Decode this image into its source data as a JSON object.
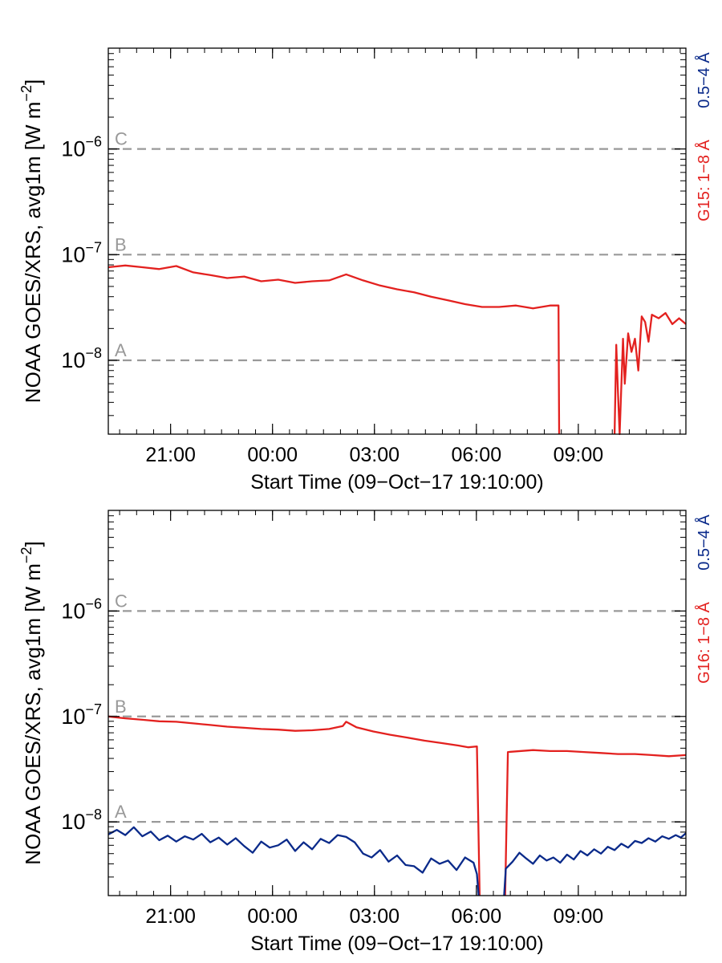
{
  "colors": {
    "long_channel": "#e3211f",
    "short_channel": "#0a2a8a",
    "threshold": "#999999",
    "axis": "#000000"
  },
  "chart_data": [
    {
      "type": "line",
      "ylabel_main": "NOAA GOES/XRS, avg1m [W m",
      "ylabel_sup": "−2",
      "ylabel_end": "]",
      "xlabel": "Start Time (09−Oct−17 19:10:00)",
      "y_scale": "log",
      "ylim": [
        2e-09,
        9e-06
      ],
      "xlim_hours_from_start": [
        0,
        17
      ],
      "xticks": [
        {
          "hour": 1.8333,
          "label": "21:00"
        },
        {
          "hour": 4.8333,
          "label": "00:00"
        },
        {
          "hour": 7.8333,
          "label": "03:00"
        },
        {
          "hour": 10.8333,
          "label": "06:00"
        },
        {
          "hour": 13.8333,
          "label": "09:00"
        }
      ],
      "yticks": [
        {
          "value": 1e-06,
          "base": "10",
          "exp": "−6"
        },
        {
          "value": 1e-07,
          "base": "10",
          "exp": "−7"
        },
        {
          "value": 1e-08,
          "base": "10",
          "exp": "−8"
        }
      ],
      "thresholds": [
        {
          "value": 1e-06,
          "label": "C"
        },
        {
          "value": 1e-07,
          "label": "B"
        },
        {
          "value": 1e-08,
          "label": "A"
        }
      ],
      "right_legend": [
        {
          "text": "0.5−4 Å",
          "channel": "short"
        },
        {
          "text": "G15: 1−8 Å",
          "channel": "long"
        }
      ],
      "series": [
        {
          "channel": "long",
          "points": [
            [
              0,
              7.6e-08
            ],
            [
              0.5,
              7.9e-08
            ],
            [
              1.0,
              7.6e-08
            ],
            [
              1.5,
              7.3e-08
            ],
            [
              2.0,
              7.8e-08
            ],
            [
              2.5,
              6.8e-08
            ],
            [
              3.0,
              6.4e-08
            ],
            [
              3.5,
              6e-08
            ],
            [
              4.0,
              6.2e-08
            ],
            [
              4.5,
              5.6e-08
            ],
            [
              5.0,
              5.8e-08
            ],
            [
              5.5,
              5.4e-08
            ],
            [
              6.0,
              5.6e-08
            ],
            [
              6.5,
              5.7e-08
            ],
            [
              7.0,
              6.5e-08
            ],
            [
              7.5,
              5.7e-08
            ],
            [
              8.0,
              5.1e-08
            ],
            [
              8.5,
              4.7e-08
            ],
            [
              9.0,
              4.4e-08
            ],
            [
              9.5,
              4e-08
            ],
            [
              10.0,
              3.7e-08
            ],
            [
              10.5,
              3.4e-08
            ],
            [
              11.0,
              3.2e-08
            ],
            [
              11.5,
              3.2e-08
            ],
            [
              12.0,
              3.3e-08
            ],
            [
              12.5,
              3.1e-08
            ],
            [
              13.0,
              3.3e-08
            ],
            [
              13.25,
              3.3e-08
            ],
            [
              13.27,
              2e-09
            ]
          ]
        },
        {
          "channel": "long",
          "points": [
            [
              14.9,
              2e-09
            ],
            [
              14.95,
              1.4e-08
            ],
            [
              15.0,
              5e-09
            ],
            [
              15.05,
              2e-09
            ],
            [
              15.15,
              1.6e-08
            ],
            [
              15.2,
              6e-09
            ],
            [
              15.3,
              1.8e-08
            ],
            [
              15.4,
              1.2e-08
            ],
            [
              15.5,
              1.6e-08
            ],
            [
              15.6,
              8e-09
            ],
            [
              15.7,
              2.6e-08
            ],
            [
              15.8,
              2.3e-08
            ],
            [
              15.9,
              1.5e-08
            ],
            [
              16.0,
              2.7e-08
            ],
            [
              16.2,
              2.5e-08
            ],
            [
              16.4,
              2.8e-08
            ],
            [
              16.6,
              2.2e-08
            ],
            [
              16.8,
              2.5e-08
            ],
            [
              17.0,
              2.2e-08
            ]
          ]
        }
      ]
    },
    {
      "type": "line",
      "ylabel_main": "NOAA GOES/XRS, avg1m [W m",
      "ylabel_sup": "−2",
      "ylabel_end": "]",
      "xlabel": "Start Time (09−Oct−17 19:10:00)",
      "y_scale": "log",
      "ylim": [
        2e-09,
        9e-06
      ],
      "xlim_hours_from_start": [
        0,
        17
      ],
      "xticks": [
        {
          "hour": 1.8333,
          "label": "21:00"
        },
        {
          "hour": 4.8333,
          "label": "00:00"
        },
        {
          "hour": 7.8333,
          "label": "03:00"
        },
        {
          "hour": 10.8333,
          "label": "06:00"
        },
        {
          "hour": 13.8333,
          "label": "09:00"
        }
      ],
      "yticks": [
        {
          "value": 1e-06,
          "base": "10",
          "exp": "−6"
        },
        {
          "value": 1e-07,
          "base": "10",
          "exp": "−7"
        },
        {
          "value": 1e-08,
          "base": "10",
          "exp": "−8"
        }
      ],
      "thresholds": [
        {
          "value": 1e-06,
          "label": "C"
        },
        {
          "value": 1e-07,
          "label": "B"
        },
        {
          "value": 1e-08,
          "label": "A"
        }
      ],
      "right_legend": [
        {
          "text": "0.5−4 Å",
          "channel": "short"
        },
        {
          "text": "G16: 1−8 Å",
          "channel": "long"
        }
      ],
      "series": [
        {
          "channel": "long",
          "points": [
            [
              0,
              1e-07
            ],
            [
              0.5,
              9.6e-08
            ],
            [
              1.0,
              9.3e-08
            ],
            [
              1.5,
              9e-08
            ],
            [
              2.0,
              8.9e-08
            ],
            [
              2.5,
              8.6e-08
            ],
            [
              3.0,
              8.3e-08
            ],
            [
              3.5,
              8e-08
            ],
            [
              4.0,
              7.8e-08
            ],
            [
              4.5,
              7.6e-08
            ],
            [
              5.0,
              7.5e-08
            ],
            [
              5.5,
              7.3e-08
            ],
            [
              6.0,
              7.4e-08
            ],
            [
              6.5,
              7.6e-08
            ],
            [
              6.9,
              8.1e-08
            ],
            [
              7.0,
              8.9e-08
            ],
            [
              7.3,
              7.9e-08
            ],
            [
              7.8,
              7.2e-08
            ],
            [
              8.3,
              6.7e-08
            ],
            [
              8.8,
              6.3e-08
            ],
            [
              9.3,
              5.9e-08
            ],
            [
              9.8,
              5.6e-08
            ],
            [
              10.3,
              5.3e-08
            ],
            [
              10.6,
              5.1e-08
            ],
            [
              10.85,
              5.2e-08
            ],
            [
              10.93,
              2e-09
            ]
          ]
        },
        {
          "channel": "long",
          "points": [
            [
              11.68,
              2e-09
            ],
            [
              11.76,
              4.6e-08
            ],
            [
              12.5,
              4.8e-08
            ],
            [
              13.0,
              4.7e-08
            ],
            [
              13.5,
              4.7e-08
            ],
            [
              14.0,
              4.6e-08
            ],
            [
              14.5,
              4.5e-08
            ],
            [
              15.0,
              4.4e-08
            ],
            [
              15.5,
              4.4e-08
            ],
            [
              16.0,
              4.3e-08
            ],
            [
              16.5,
              4.2e-08
            ],
            [
              17.0,
              4.3e-08
            ]
          ]
        },
        {
          "channel": "short",
          "points": [
            [
              0,
              7.6e-09
            ],
            [
              0.25,
              8.4e-09
            ],
            [
              0.5,
              7.5e-09
            ],
            [
              0.75,
              8.9e-09
            ],
            [
              1.0,
              7.3e-09
            ],
            [
              1.25,
              8.1e-09
            ],
            [
              1.5,
              6.7e-09
            ],
            [
              1.75,
              7.4e-09
            ],
            [
              2.0,
              6.5e-09
            ],
            [
              2.25,
              7.3e-09
            ],
            [
              2.5,
              6.8e-09
            ],
            [
              2.75,
              7.7e-09
            ],
            [
              3.0,
              6.4e-09
            ],
            [
              3.25,
              7.1e-09
            ],
            [
              3.5,
              6.1e-09
            ],
            [
              3.75,
              7e-09
            ],
            [
              4.0,
              5.9e-09
            ],
            [
              4.25,
              5.1e-09
            ],
            [
              4.5,
              6.5e-09
            ],
            [
              4.75,
              5.7e-09
            ],
            [
              5.0,
              6e-09
            ],
            [
              5.25,
              6.8e-09
            ],
            [
              5.5,
              5.3e-09
            ],
            [
              5.75,
              6.4e-09
            ],
            [
              6.0,
              5.5e-09
            ],
            [
              6.25,
              6.9e-09
            ],
            [
              6.5,
              6.3e-09
            ],
            [
              6.75,
              7.5e-09
            ],
            [
              7.0,
              7.2e-09
            ],
            [
              7.25,
              6.4e-09
            ],
            [
              7.5,
              5e-09
            ],
            [
              7.75,
              4.6e-09
            ],
            [
              8.0,
              5.4e-09
            ],
            [
              8.25,
              4.2e-09
            ],
            [
              8.5,
              4.8e-09
            ],
            [
              8.75,
              3.9e-09
            ],
            [
              9.0,
              3.8e-09
            ],
            [
              9.25,
              3.3e-09
            ],
            [
              9.5,
              4.5e-09
            ],
            [
              9.75,
              4e-09
            ],
            [
              10.0,
              4.3e-09
            ],
            [
              10.25,
              3.5e-09
            ],
            [
              10.5,
              4.6e-09
            ],
            [
              10.75,
              4.1e-09
            ],
            [
              10.85,
              3.2e-09
            ],
            [
              10.9,
              2e-09
            ]
          ]
        },
        {
          "channel": "short",
          "points": [
            [
              11.65,
              2e-09
            ],
            [
              11.7,
              3.6e-09
            ],
            [
              11.9,
              4.2e-09
            ],
            [
              12.1,
              5.1e-09
            ],
            [
              12.3,
              4.5e-09
            ],
            [
              12.5,
              4e-09
            ],
            [
              12.7,
              4.8e-09
            ],
            [
              12.9,
              4.3e-09
            ],
            [
              13.1,
              4.6e-09
            ],
            [
              13.3,
              4.1e-09
            ],
            [
              13.5,
              4.9e-09
            ],
            [
              13.7,
              4.4e-09
            ],
            [
              13.9,
              5.3e-09
            ],
            [
              14.1,
              4.8e-09
            ],
            [
              14.3,
              5.5e-09
            ],
            [
              14.5,
              5e-09
            ],
            [
              14.7,
              5.8e-09
            ],
            [
              14.9,
              5.4e-09
            ],
            [
              15.1,
              6.2e-09
            ],
            [
              15.3,
              5.7e-09
            ],
            [
              15.5,
              6.6e-09
            ],
            [
              15.7,
              6.3e-09
            ],
            [
              15.9,
              7e-09
            ],
            [
              16.1,
              6.5e-09
            ],
            [
              16.3,
              7.3e-09
            ],
            [
              16.5,
              6.9e-09
            ],
            [
              16.7,
              7.5e-09
            ],
            [
              16.85,
              7.1e-09
            ],
            [
              17.0,
              7.8e-09
            ]
          ]
        }
      ]
    }
  ]
}
